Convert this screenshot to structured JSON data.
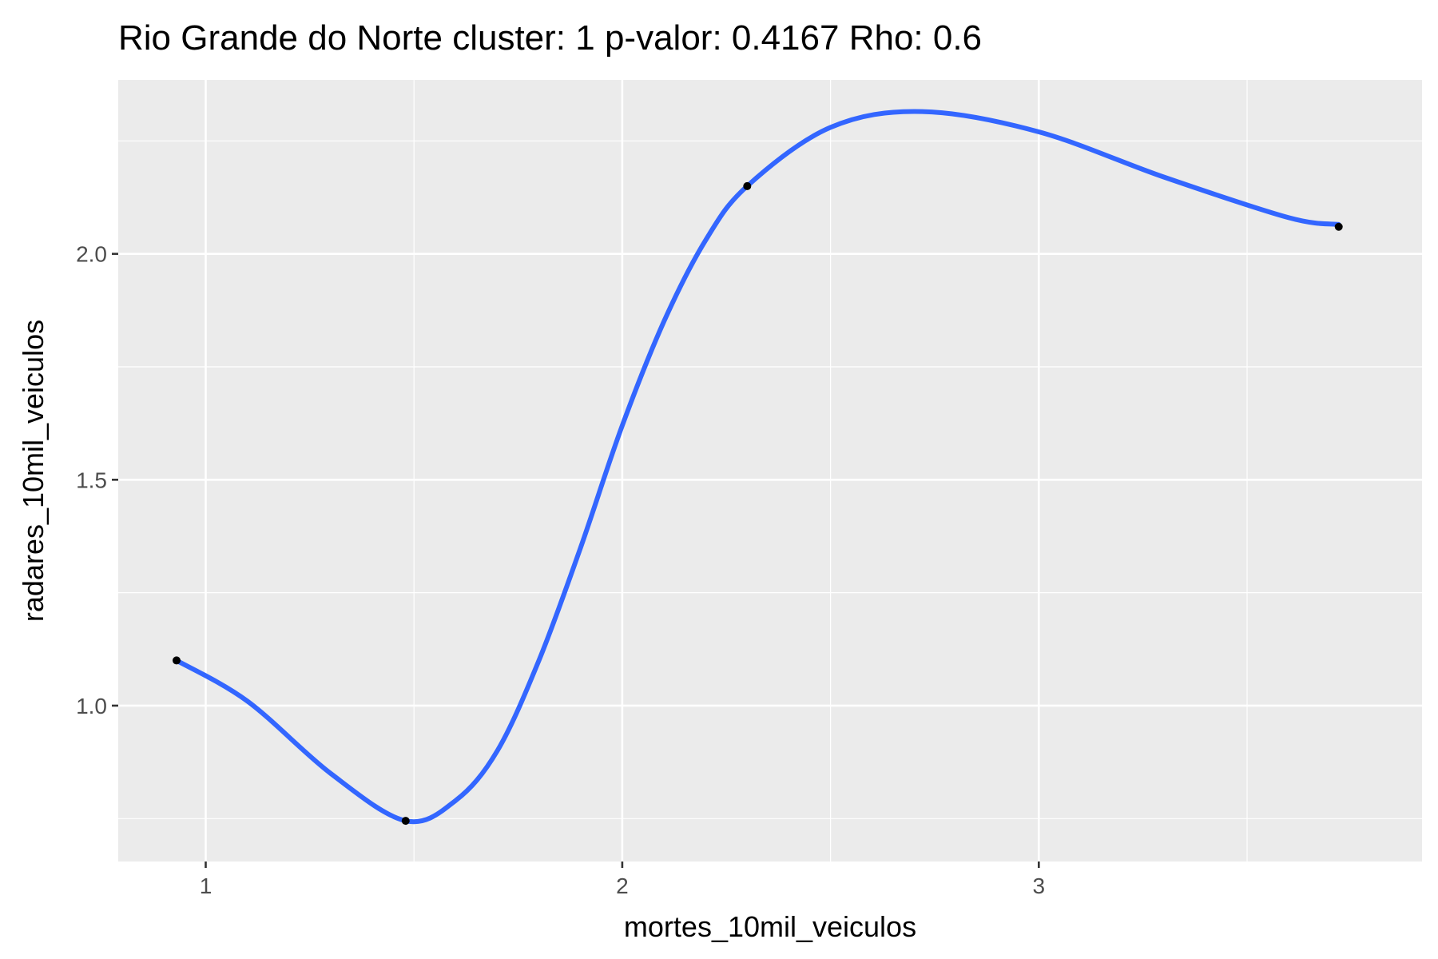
{
  "chart_data": {
    "type": "scatter",
    "title": "Rio Grande do Norte cluster: 1 p-valor: 0.4167 Rho: 0.6",
    "xlabel": "mortes_10mil_veiculos",
    "ylabel": "radares_10mil_veiculos",
    "xlim": [
      0.79,
      3.92
    ],
    "ylim": [
      0.655,
      2.385
    ],
    "x_ticks": [
      1,
      2,
      3
    ],
    "x_tick_labels": [
      "1",
      "2",
      "3"
    ],
    "x_minor_ticks": [
      1.5,
      2.5,
      3.5
    ],
    "y_ticks": [
      1.0,
      1.5,
      2.0
    ],
    "y_tick_labels": [
      "1.0",
      "1.5",
      "2.0"
    ],
    "y_minor_ticks": [
      0.75,
      1.25,
      1.75,
      2.25
    ],
    "grid": true,
    "legend": "none",
    "points": [
      {
        "x": 0.93,
        "y": 1.1
      },
      {
        "x": 1.48,
        "y": 0.745
      },
      {
        "x": 2.3,
        "y": 2.15
      },
      {
        "x": 3.72,
        "y": 2.06
      }
    ],
    "smooth_line": {
      "method": "loess",
      "x": [
        0.93,
        1.1,
        1.3,
        1.48,
        1.6,
        1.7,
        1.8,
        1.9,
        2.0,
        2.1,
        2.2,
        2.3,
        2.5,
        2.72,
        3.0,
        3.3,
        3.6,
        3.72
      ],
      "y": [
        1.1,
        1.01,
        0.85,
        0.745,
        0.79,
        0.9,
        1.1,
        1.35,
        1.62,
        1.85,
        2.03,
        2.15,
        2.28,
        2.315,
        2.27,
        2.17,
        2.08,
        2.065
      ]
    },
    "colors": {
      "panel": "#ebebeb",
      "grid": "#ffffff",
      "line": "#3366ff",
      "point": "#000000",
      "tick": "#333333",
      "tick_label": "#4d4d4d"
    }
  }
}
